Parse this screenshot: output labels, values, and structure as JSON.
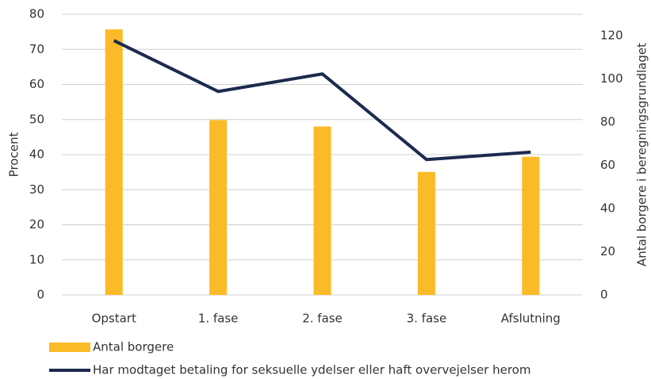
{
  "chart_data": {
    "type": "combo",
    "categories": [
      "Opstart",
      "1. fase",
      "2. fase",
      "3. fase",
      "Afslutning"
    ],
    "series": [
      {
        "name": "Antal borgere",
        "type": "bar",
        "axis": "y2",
        "color": "#fbba27",
        "values": [
          123,
          81,
          78,
          57,
          64
        ]
      },
      {
        "name": "Har modtaget betaling for seksuelle ydelser eller haft overvejelser herom",
        "type": "line",
        "axis": "y",
        "color": "#1c2a4f",
        "values": [
          72.5,
          58,
          63,
          38.6,
          40.7
        ]
      }
    ],
    "ylabel": "Procent",
    "y2label": "Antal borgere i beregningsgrundlaget",
    "ylim": [
      0,
      80
    ],
    "yticks": [
      0,
      10,
      20,
      30,
      40,
      50,
      60,
      70,
      80
    ],
    "y2lim": [
      0,
      130
    ],
    "y2ticks": [
      0,
      20,
      40,
      60,
      80,
      100,
      120
    ],
    "grid": true,
    "legend": "bottom"
  }
}
